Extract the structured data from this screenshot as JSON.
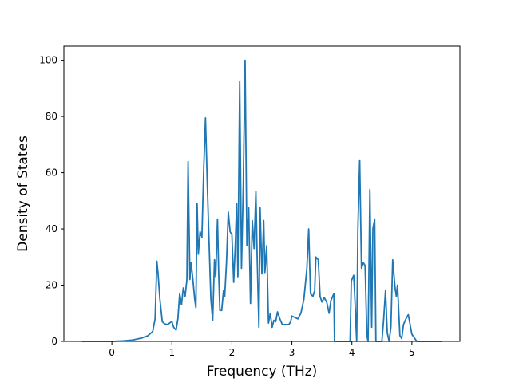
{
  "chart_data": {
    "type": "line",
    "title": "",
    "xlabel": "Frequency (THz)",
    "ylabel": "Density of States",
    "xlim": [
      -0.8,
      5.8
    ],
    "ylim": [
      0,
      105
    ],
    "xticks": [
      0,
      1,
      2,
      3,
      4,
      5
    ],
    "yticks": [
      0,
      20,
      40,
      60,
      80,
      100
    ],
    "grid": false,
    "legend": "none",
    "series": [
      {
        "color": "#1f77b4",
        "points": [
          [
            -0.5,
            0
          ],
          [
            0,
            0
          ],
          [
            0.2,
            0.2
          ],
          [
            0.35,
            0.5
          ],
          [
            0.5,
            1.2
          ],
          [
            0.6,
            2
          ],
          [
            0.68,
            3.5
          ],
          [
            0.72,
            8
          ],
          [
            0.75,
            28.5
          ],
          [
            0.77,
            24
          ],
          [
            0.8,
            15
          ],
          [
            0.84,
            7
          ],
          [
            0.88,
            6.2
          ],
          [
            0.93,
            6
          ],
          [
            0.98,
            6.8
          ],
          [
            1.0,
            7
          ],
          [
            1.03,
            5
          ],
          [
            1.07,
            4
          ],
          [
            1.1,
            8
          ],
          [
            1.13,
            17
          ],
          [
            1.16,
            13
          ],
          [
            1.19,
            19
          ],
          [
            1.22,
            16
          ],
          [
            1.25,
            22
          ],
          [
            1.27,
            64
          ],
          [
            1.3,
            22
          ],
          [
            1.32,
            28
          ],
          [
            1.35,
            22
          ],
          [
            1.38,
            15
          ],
          [
            1.4,
            12
          ],
          [
            1.42,
            49
          ],
          [
            1.44,
            31
          ],
          [
            1.47,
            39
          ],
          [
            1.5,
            37
          ],
          [
            1.53,
            61
          ],
          [
            1.56,
            79.5
          ],
          [
            1.59,
            56
          ],
          [
            1.62,
            35
          ],
          [
            1.65,
            15
          ],
          [
            1.68,
            7.5
          ],
          [
            1.71,
            29
          ],
          [
            1.73,
            23
          ],
          [
            1.76,
            43.5
          ],
          [
            1.78,
            24
          ],
          [
            1.8,
            11
          ],
          [
            1.83,
            11
          ],
          [
            1.86,
            18
          ],
          [
            1.88,
            16
          ],
          [
            1.91,
            28
          ],
          [
            1.94,
            46
          ],
          [
            1.97,
            39
          ],
          [
            2.0,
            38
          ],
          [
            2.03,
            21
          ],
          [
            2.06,
            36
          ],
          [
            2.08,
            49
          ],
          [
            2.1,
            23
          ],
          [
            2.13,
            92.5
          ],
          [
            2.16,
            26
          ],
          [
            2.19,
            56
          ],
          [
            2.22,
            100
          ],
          [
            2.25,
            34
          ],
          [
            2.28,
            47.5
          ],
          [
            2.31,
            13.5
          ],
          [
            2.34,
            43
          ],
          [
            2.37,
            33
          ],
          [
            2.4,
            53.5
          ],
          [
            2.42,
            31
          ],
          [
            2.45,
            5
          ],
          [
            2.47,
            47.5
          ],
          [
            2.5,
            24
          ],
          [
            2.53,
            43
          ],
          [
            2.55,
            24.5
          ],
          [
            2.58,
            34
          ],
          [
            2.61,
            6.5
          ],
          [
            2.64,
            10
          ],
          [
            2.67,
            5
          ],
          [
            2.7,
            7.5
          ],
          [
            2.73,
            7
          ],
          [
            2.76,
            10.5
          ],
          [
            2.8,
            8
          ],
          [
            2.84,
            6
          ],
          [
            2.9,
            6
          ],
          [
            2.95,
            6
          ],
          [
            2.98,
            7
          ],
          [
            3.0,
            9
          ],
          [
            3.05,
            8.5
          ],
          [
            3.1,
            8
          ],
          [
            3.15,
            10
          ],
          [
            3.2,
            15
          ],
          [
            3.25,
            26
          ],
          [
            3.28,
            40
          ],
          [
            3.31,
            17
          ],
          [
            3.35,
            16
          ],
          [
            3.38,
            18
          ],
          [
            3.4,
            30
          ],
          [
            3.44,
            29
          ],
          [
            3.47,
            16
          ],
          [
            3.5,
            14
          ],
          [
            3.54,
            15.5
          ],
          [
            3.58,
            14
          ],
          [
            3.62,
            10
          ],
          [
            3.65,
            14.5
          ],
          [
            3.68,
            16
          ],
          [
            3.7,
            17
          ],
          [
            3.71,
            0
          ],
          [
            3.97,
            0
          ],
          [
            3.99,
            21.5
          ],
          [
            4.03,
            23.5
          ],
          [
            4.05,
            15
          ],
          [
            4.08,
            0
          ],
          [
            4.1,
            40
          ],
          [
            4.13,
            64.5
          ],
          [
            4.16,
            26
          ],
          [
            4.19,
            28
          ],
          [
            4.22,
            27
          ],
          [
            4.25,
            2
          ],
          [
            4.27,
            0
          ],
          [
            4.3,
            54
          ],
          [
            4.33,
            5
          ],
          [
            4.35,
            40
          ],
          [
            4.38,
            43.5
          ],
          [
            4.4,
            0
          ],
          [
            4.45,
            0
          ],
          [
            4.5,
            0
          ],
          [
            4.53,
            8
          ],
          [
            4.56,
            18
          ],
          [
            4.59,
            3
          ],
          [
            4.62,
            0
          ],
          [
            4.65,
            5
          ],
          [
            4.68,
            29
          ],
          [
            4.72,
            19
          ],
          [
            4.74,
            16
          ],
          [
            4.76,
            20
          ],
          [
            4.8,
            2
          ],
          [
            4.83,
            1
          ],
          [
            4.86,
            6
          ],
          [
            4.9,
            8
          ],
          [
            4.94,
            9.5
          ],
          [
            4.97,
            6
          ],
          [
            5.0,
            2.5
          ],
          [
            5.05,
            1
          ],
          [
            5.08,
            0
          ],
          [
            5.3,
            0
          ],
          [
            5.5,
            0
          ]
        ]
      }
    ]
  }
}
